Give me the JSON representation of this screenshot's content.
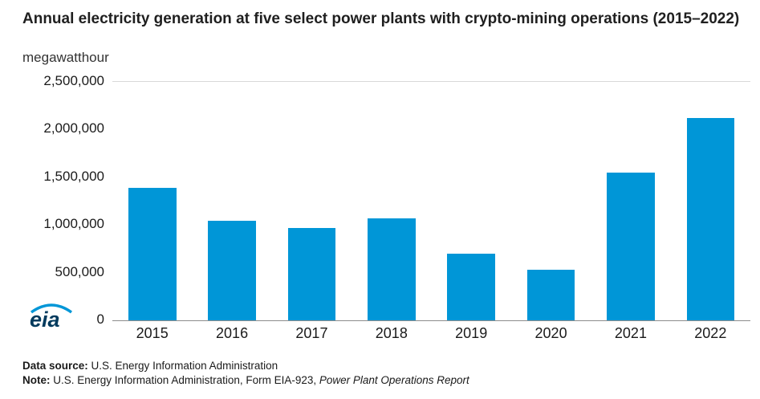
{
  "title": "Annual electricity generation at five select power plants with crypto-mining operations (2015–2022)",
  "subtitle": "megawatthour",
  "chart_data": {
    "type": "bar",
    "categories": [
      "2015",
      "2016",
      "2017",
      "2018",
      "2019",
      "2020",
      "2021",
      "2022"
    ],
    "values": [
      1390000,
      1040000,
      970000,
      1070000,
      700000,
      530000,
      1550000,
      2120000
    ],
    "title": "Annual electricity generation at five select power plants with crypto-mining operations (2015–2022)",
    "xlabel": "",
    "ylabel": "megawatthour",
    "ylim": [
      0,
      2500000
    ],
    "ytick_interval": 500000,
    "yticks": [
      "0",
      "500,000",
      "1,000,000",
      "1,500,000",
      "2,000,000",
      "2,500,000"
    ],
    "bar_color": "#0096d7",
    "grid": "top-line-only",
    "legend": "none"
  },
  "logo": {
    "text": "eia",
    "text_color": "#003a5d",
    "swoosh_color": "#0096d7"
  },
  "footer": {
    "data_source_label": "Data source:",
    "data_source_text": " U.S. Energy Information Administration",
    "note_label": "Note:",
    "note_text": " U.S. Energy Information Administration, Form EIA-923, ",
    "note_italic": "Power Plant Operations Report"
  }
}
